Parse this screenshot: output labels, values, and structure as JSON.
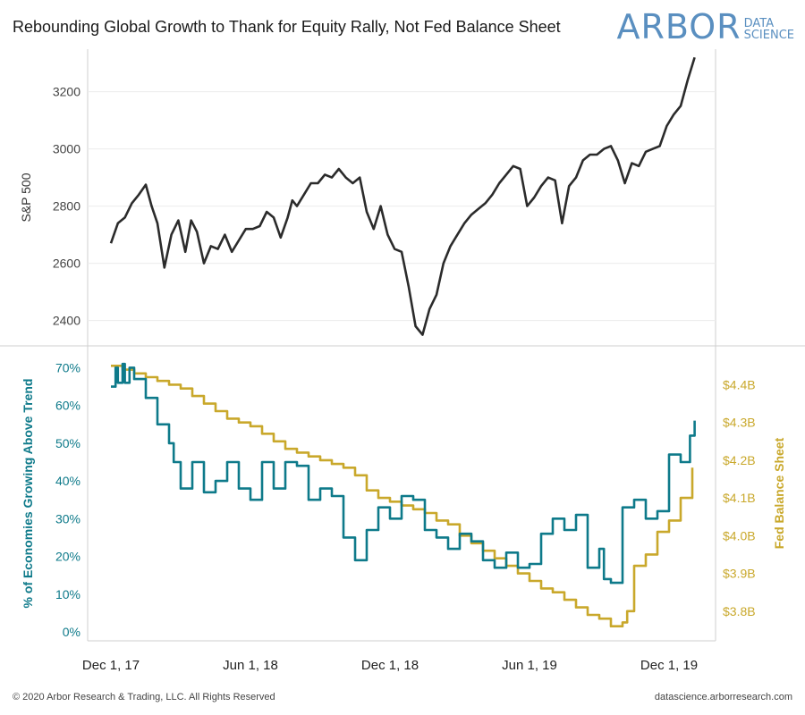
{
  "title": "Rebounding Global Growth to Thank for Equity Rally, Not Fed Balance Sheet",
  "logo": {
    "main": "ARBOR",
    "sub1": "DATA",
    "sub2": "SCIENCE",
    "color": "#5a8fc0"
  },
  "footer": {
    "left": "© 2020 Arbor Research & Trading, LLC. All Rights Reserved",
    "right": "datascience.arborresearch.com"
  },
  "colors": {
    "sp500": "#2b2b2b",
    "economies": "#0e7a8a",
    "fed": "#c9a82b",
    "grid": "#ececec",
    "border": "#cfcfcf"
  },
  "chart_data": [
    {
      "type": "line",
      "panel": "top",
      "ylabel": "S&P 500",
      "ylim": [
        2330,
        3330
      ],
      "yticks": [
        "2400",
        "2600",
        "2800",
        "3000",
        "3200"
      ],
      "series": [
        {
          "name": "S&P 500",
          "x": [
            0,
            0.3,
            0.6,
            0.9,
            1.2,
            1.5,
            1.75,
            2.0,
            2.3,
            2.6,
            2.9,
            3.2,
            3.45,
            3.7,
            4.0,
            4.3,
            4.6,
            4.9,
            5.2,
            5.5,
            5.8,
            6.1,
            6.4,
            6.7,
            7.0,
            7.3,
            7.6,
            7.8,
            8.0,
            8.3,
            8.6,
            8.9,
            9.2,
            9.5,
            9.8,
            10.1,
            10.4,
            10.7,
            11.0,
            11.3,
            11.6,
            11.9,
            12.2,
            12.5,
            12.8,
            13.1,
            13.4,
            13.7,
            14.0,
            14.3,
            14.6,
            14.9,
            15.2,
            15.5,
            15.8,
            16.1,
            16.4,
            16.7,
            17.0,
            17.3,
            17.6,
            17.9,
            18.2,
            18.5,
            18.8,
            19.1,
            19.4,
            19.7,
            20.0,
            20.3,
            20.6,
            20.9,
            21.2,
            21.5,
            21.8,
            22.1,
            22.4,
            22.7,
            23.0,
            23.3,
            23.6,
            23.9,
            24.2,
            24.5,
            24.8,
            25.1
          ],
          "values": [
            2670,
            2740,
            2760,
            2810,
            2840,
            2875,
            2800,
            2740,
            2585,
            2700,
            2750,
            2640,
            2750,
            2710,
            2600,
            2660,
            2650,
            2700,
            2640,
            2680,
            2720,
            2720,
            2730,
            2780,
            2760,
            2690,
            2760,
            2820,
            2800,
            2840,
            2880,
            2880,
            2910,
            2900,
            2930,
            2900,
            2880,
            2900,
            2780,
            2720,
            2800,
            2700,
            2650,
            2640,
            2520,
            2380,
            2350,
            2440,
            2490,
            2600,
            2660,
            2700,
            2740,
            2770,
            2790,
            2810,
            2840,
            2880,
            2910,
            2940,
            2930,
            2800,
            2830,
            2870,
            2900,
            2890,
            2740,
            2870,
            2900,
            2960,
            2980,
            2980,
            3000,
            3010,
            2960,
            2880,
            2950,
            2940,
            2990,
            3000,
            3010,
            3080,
            3120,
            3150,
            3240,
            3320
          ]
        }
      ]
    },
    {
      "type": "line",
      "panel": "bottom",
      "xlabel": "",
      "ylabel": "% of Economies Growing Above Trend",
      "ylim": [
        0,
        72
      ],
      "yticks": [
        "0%",
        "10%",
        "20%",
        "30%",
        "40%",
        "50%",
        "60%",
        "70%"
      ],
      "y2label": "Fed Balance Sheet",
      "y2lim": [
        3.745,
        4.465
      ],
      "y2ticks": [
        "$3.8B",
        "$3.9B",
        "$4.0B",
        "$4.1B",
        "$4.2B",
        "$4.3B",
        "$4.4B"
      ],
      "xticks": [
        "Dec 1, 17",
        "Jun 1, 18",
        "Dec 1, 18",
        "Jun 1, 19",
        "Dec 1, 19"
      ],
      "xtick_positions": [
        0,
        6,
        12,
        18,
        24
      ],
      "xlim": [
        -1,
        26
      ],
      "series": [
        {
          "name": "% of Economies Growing Above Trend",
          "axis": "left",
          "x": [
            0,
            0.2,
            0.3,
            0.5,
            0.6,
            0.8,
            1.0,
            1.5,
            2.0,
            2.5,
            2.7,
            3.0,
            3.5,
            4.0,
            4.5,
            5.0,
            5.5,
            6.0,
            6.5,
            7.0,
            7.5,
            8.0,
            8.5,
            9.0,
            9.5,
            10.0,
            10.5,
            11.0,
            11.5,
            12.0,
            12.5,
            13.0,
            13.5,
            14.0,
            14.5,
            15.0,
            15.5,
            16.0,
            16.5,
            17.0,
            17.5,
            18.0,
            18.5,
            19.0,
            19.5,
            20.0,
            20.5,
            21.0,
            21.2,
            21.5,
            22.0,
            22.5,
            23.0,
            23.5,
            24.0,
            24.5,
            24.9,
            25.1
          ],
          "values": [
            65,
            70,
            66,
            71,
            66,
            70,
            67,
            62,
            55,
            50,
            45,
            38,
            45,
            37,
            40,
            45,
            38,
            35,
            45,
            38,
            45,
            44,
            35,
            38,
            36,
            25,
            19,
            27,
            33,
            30,
            36,
            35,
            27,
            25,
            22,
            26,
            24,
            19,
            17,
            21,
            17,
            18,
            26,
            30,
            27,
            31,
            17,
            22,
            14,
            13,
            33,
            35,
            30,
            32,
            47,
            45,
            52,
            56
          ]
        },
        {
          "name": "Fed Balance Sheet",
          "axis": "right",
          "x": [
            0,
            0.5,
            1.0,
            1.5,
            2.0,
            2.5,
            3.0,
            3.5,
            4.0,
            4.5,
            5.0,
            5.5,
            6.0,
            6.5,
            7.0,
            7.5,
            8.0,
            8.5,
            9.0,
            9.5,
            10.0,
            10.5,
            11.0,
            11.5,
            12.0,
            12.5,
            13.0,
            13.5,
            14.0,
            14.5,
            15.0,
            15.5,
            16.0,
            16.5,
            17.0,
            17.5,
            18.0,
            18.5,
            19.0,
            19.5,
            20.0,
            20.5,
            21.0,
            21.5,
            22.0,
            22.2,
            22.5,
            23.0,
            23.5,
            24.0,
            24.5,
            25.0
          ],
          "values": [
            4.45,
            4.44,
            4.43,
            4.42,
            4.41,
            4.4,
            4.39,
            4.37,
            4.35,
            4.33,
            4.31,
            4.3,
            4.29,
            4.27,
            4.25,
            4.23,
            4.22,
            4.21,
            4.2,
            4.19,
            4.18,
            4.16,
            4.12,
            4.1,
            4.09,
            4.08,
            4.07,
            4.06,
            4.04,
            4.03,
            4.0,
            3.98,
            3.96,
            3.94,
            3.92,
            3.9,
            3.88,
            3.86,
            3.85,
            3.83,
            3.81,
            3.79,
            3.78,
            3.76,
            3.77,
            3.8,
            3.92,
            3.95,
            4.01,
            4.04,
            4.1,
            4.18
          ]
        }
      ]
    }
  ]
}
